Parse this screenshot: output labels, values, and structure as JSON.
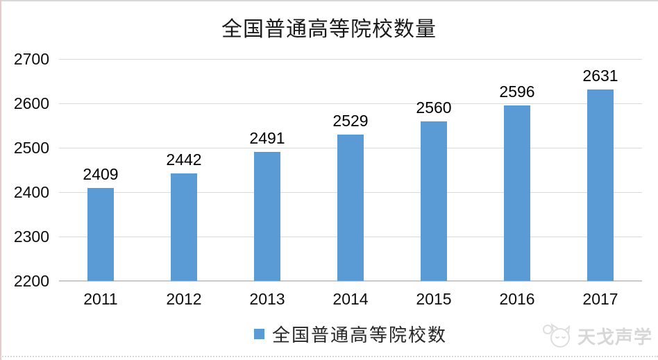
{
  "header": {
    "title": "全国普通高等院校数量"
  },
  "legend": {
    "label": "全国普通高等院校数"
  },
  "watermark": {
    "text": "天戈声学",
    "logo": "cat-mascot-icon"
  },
  "colors": {
    "bar": "#5b9bd5",
    "gridline": "#d9d9d9",
    "axis": "#c9c9c9",
    "label_text": "#000000",
    "tick_text": "#0d0d0d",
    "watermark": "#d7d7d7",
    "left_edge": "#eac9c9"
  },
  "chart_data": {
    "type": "bar",
    "title": "全国普通高等院校数量",
    "categories": [
      "2011",
      "2012",
      "2013",
      "2014",
      "2015",
      "2016",
      "2017"
    ],
    "series": [
      {
        "name": "全国普通高等院校数",
        "values": [
          2409,
          2442,
          2491,
          2529,
          2560,
          2596,
          2631
        ]
      }
    ],
    "xlabel": "",
    "ylabel": "",
    "ylim": [
      2200,
      2700
    ],
    "yticks": [
      2200,
      2300,
      2400,
      2500,
      2600,
      2700
    ],
    "grid": true,
    "data_labels": true,
    "legend_position": "bottom-center"
  }
}
